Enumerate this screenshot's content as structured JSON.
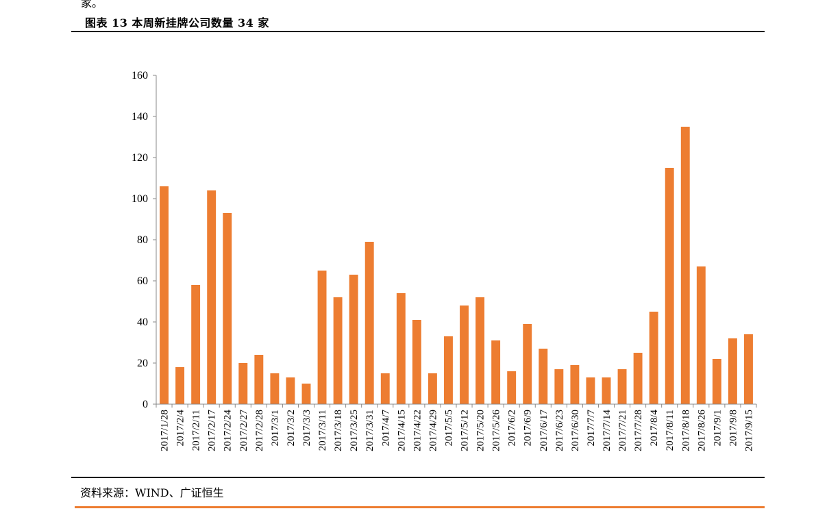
{
  "header": {
    "top_fragment": "家。",
    "figure_title": "图表 13 本周新挂牌公司数量 34 家"
  },
  "footer": {
    "source": "资料来源：WIND、广证恒生"
  },
  "colors": {
    "bar": "#ED7D31",
    "accent_rule": "#ED7D31",
    "axis": "#888888"
  },
  "chart_data": {
    "type": "bar",
    "title": "",
    "xlabel": "",
    "ylabel": "",
    "ylim": [
      0,
      160
    ],
    "yticks": [
      0,
      20,
      40,
      60,
      80,
      100,
      120,
      140,
      160
    ],
    "grid": false,
    "legend": "none",
    "categories": [
      "2017/1/28",
      "2017/2/4",
      "2017/2/11",
      "2017/2/17",
      "2017/2/24",
      "2017/2/27",
      "2017/2/28",
      "2017/3/1",
      "2017/3/2",
      "2017/3/3",
      "2017/3/11",
      "2017/3/18",
      "2017/3/25",
      "2017/3/31",
      "2017/4/7",
      "2017/4/15",
      "2017/4/22",
      "2017/4/29",
      "2017/5/5",
      "2017/5/12",
      "2017/5/20",
      "2017/5/26",
      "2017/6/2",
      "2017/6/9",
      "2017/6/17",
      "2017/6/23",
      "2017/6/30",
      "2017/7/7",
      "2017/7/14",
      "2017/7/21",
      "2017/7/28",
      "2017/8/4",
      "2017/8/11",
      "2017/8/18",
      "2017/8/26",
      "2017/9/1",
      "2017/9/8",
      "2017/9/15"
    ],
    "values": [
      106,
      18,
      58,
      104,
      93,
      20,
      24,
      15,
      13,
      10,
      65,
      52,
      63,
      79,
      15,
      54,
      41,
      15,
      33,
      48,
      52,
      31,
      16,
      39,
      27,
      17,
      19,
      13,
      13,
      17,
      25,
      45,
      115,
      135,
      67,
      22,
      32,
      34
    ]
  }
}
